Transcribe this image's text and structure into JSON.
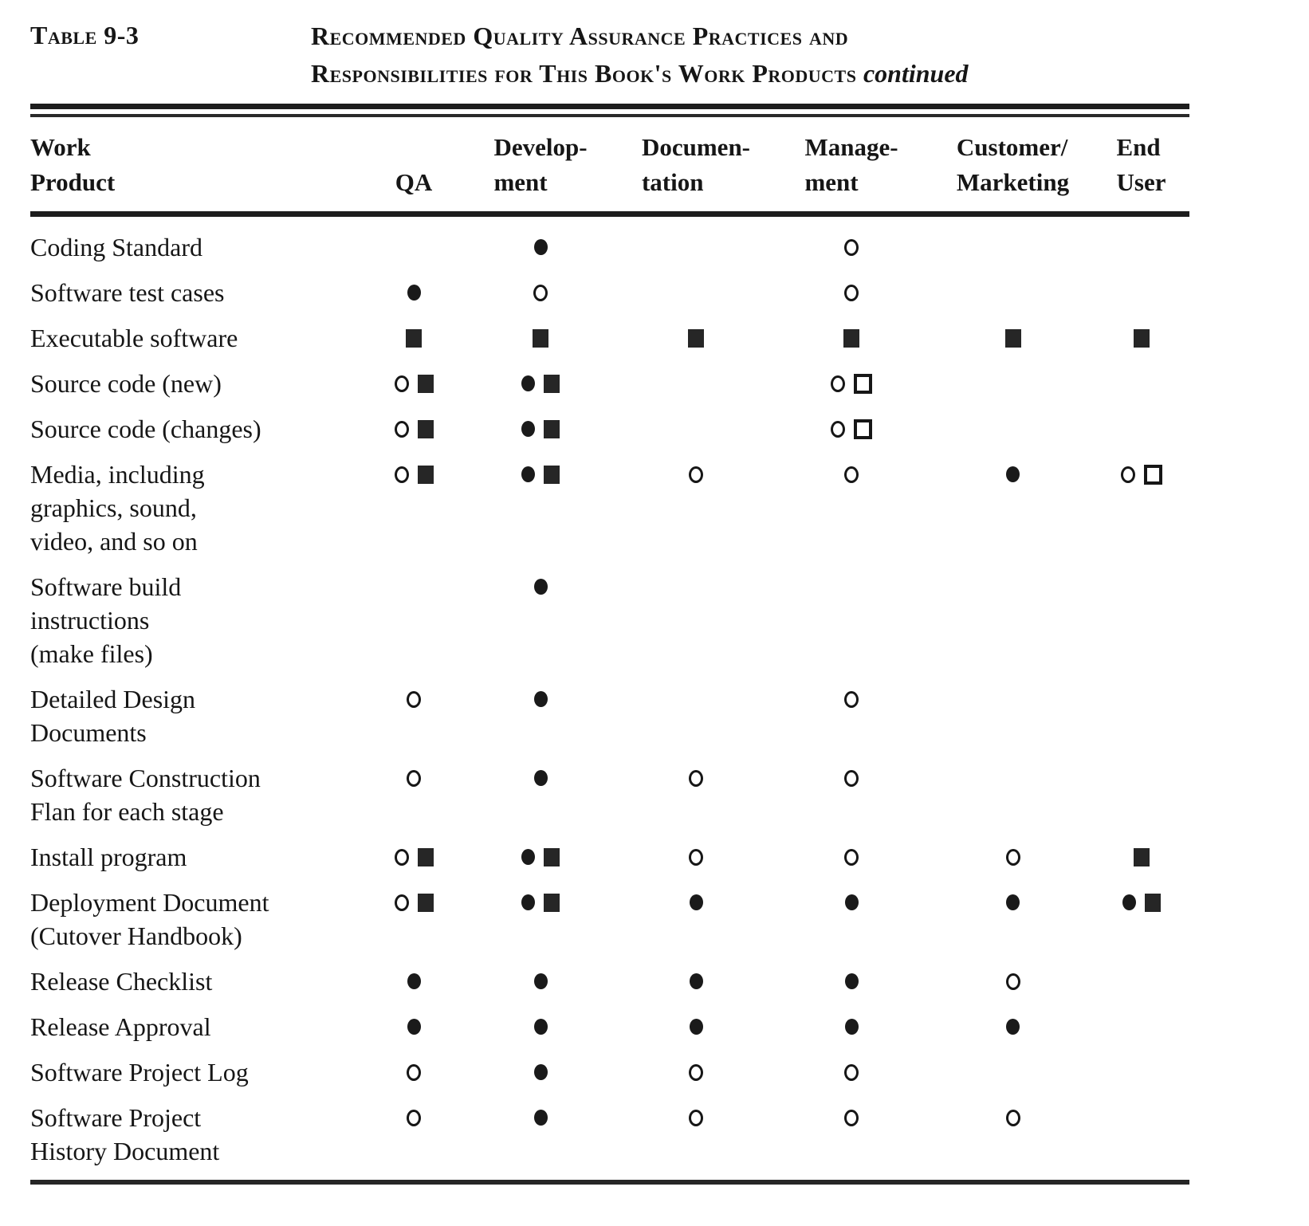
{
  "page": {
    "label": "Table 9-3",
    "title": {
      "line1": "Recommended Quality Assurance Practices and",
      "line2": "Responsibilities for This Book's Work Products",
      "continued": "continued"
    }
  },
  "table": {
    "columns": [
      {
        "id": "work-product",
        "lines": [
          "Work",
          "Product"
        ]
      },
      {
        "id": "qa",
        "lines": [
          "QA"
        ]
      },
      {
        "id": "development",
        "lines": [
          "Develop-",
          "ment"
        ]
      },
      {
        "id": "documentation",
        "lines": [
          "Documen-",
          "tation"
        ]
      },
      {
        "id": "management",
        "lines": [
          "Manage-",
          "ment"
        ]
      },
      {
        "id": "customer-marketing",
        "lines": [
          "Customer/",
          "Marketing"
        ]
      },
      {
        "id": "end-user",
        "lines": [
          "End",
          "User"
        ]
      }
    ],
    "rows": [
      {
        "label_lines": [
          "Coding Standard"
        ],
        "cells": [
          [],
          [
            "circle-filled"
          ],
          [],
          [
            "circle-open"
          ],
          [],
          []
        ]
      },
      {
        "label_lines": [
          "Software test cases"
        ],
        "cells": [
          [
            "circle-filled"
          ],
          [
            "circle-open"
          ],
          [],
          [
            "circle-open"
          ],
          [],
          []
        ]
      },
      {
        "label_lines": [
          "Executable software"
        ],
        "cells": [
          [
            "square-filled"
          ],
          [
            "square-filled"
          ],
          [
            "square-filled"
          ],
          [
            "square-filled"
          ],
          [
            "square-filled"
          ],
          [
            "square-filled"
          ]
        ]
      },
      {
        "label_lines": [
          "Source code (new)"
        ],
        "cells": [
          [
            "circle-open",
            "square-filled"
          ],
          [
            "circle-filled",
            "square-filled"
          ],
          [],
          [
            "circle-open",
            "square-open"
          ],
          [],
          []
        ]
      },
      {
        "label_lines": [
          "Source code (changes)"
        ],
        "cells": [
          [
            "circle-open",
            "square-filled"
          ],
          [
            "circle-filled",
            "square-filled"
          ],
          [],
          [
            "circle-open",
            "square-open"
          ],
          [],
          []
        ]
      },
      {
        "label_lines": [
          "Media, including",
          "graphics, sound,",
          "video, and so on"
        ],
        "cells": [
          [
            "circle-open",
            "square-filled"
          ],
          [
            "circle-filled",
            "square-filled"
          ],
          [
            "circle-open"
          ],
          [
            "circle-open"
          ],
          [
            "circle-filled"
          ],
          [
            "circle-open",
            "square-open"
          ]
        ]
      },
      {
        "label_lines": [
          "Software  build",
          "instructions",
          "(make files)"
        ],
        "cells": [
          [],
          [
            "circle-filled"
          ],
          [],
          [],
          [],
          []
        ]
      },
      {
        "label_lines": [
          "Detailed Design",
          "Documents"
        ],
        "cells": [
          [
            "circle-open"
          ],
          [
            "circle-filled"
          ],
          [],
          [
            "circle-open"
          ],
          [],
          []
        ]
      },
      {
        "label_lines": [
          "Software  Construction",
          "Flan for each stage"
        ],
        "cells": [
          [
            "circle-open"
          ],
          [
            "circle-filled"
          ],
          [
            "circle-open"
          ],
          [
            "circle-open"
          ],
          [],
          []
        ]
      },
      {
        "label_lines": [
          "Install program"
        ],
        "cells": [
          [
            "circle-open",
            "square-filled"
          ],
          [
            "circle-filled",
            "square-filled"
          ],
          [
            "circle-open"
          ],
          [
            "circle-open"
          ],
          [
            "circle-open"
          ],
          [
            "square-filled"
          ]
        ]
      },
      {
        "label_lines": [
          "Deployment Document",
          "(Cutover  Handbook)"
        ],
        "cells": [
          [
            "circle-open",
            "square-filled"
          ],
          [
            "circle-filled",
            "square-filled"
          ],
          [
            "circle-filled"
          ],
          [
            "circle-filled"
          ],
          [
            "circle-filled"
          ],
          [
            "circle-filled",
            "square-filled"
          ]
        ]
      },
      {
        "label_lines": [
          "Release  Checklist"
        ],
        "cells": [
          [
            "circle-filled"
          ],
          [
            "circle-filled"
          ],
          [
            "circle-filled"
          ],
          [
            "circle-filled"
          ],
          [
            "circle-open"
          ],
          []
        ]
      },
      {
        "label_lines": [
          "Release  Approval"
        ],
        "cells": [
          [
            "circle-filled"
          ],
          [
            "circle-filled"
          ],
          [
            "circle-filled"
          ],
          [
            "circle-filled"
          ],
          [
            "circle-filled"
          ],
          []
        ]
      },
      {
        "label_lines": [
          "Software Project Log"
        ],
        "cells": [
          [
            "circle-open"
          ],
          [
            "circle-filled"
          ],
          [
            "circle-open"
          ],
          [
            "circle-open"
          ],
          [],
          []
        ]
      },
      {
        "label_lines": [
          "Software Project",
          "History Document"
        ],
        "cells": [
          [
            "circle-open"
          ],
          [
            "circle-filled"
          ],
          [
            "circle-open"
          ],
          [
            "circle-open"
          ],
          [
            "circle-open"
          ],
          []
        ]
      }
    ]
  }
}
